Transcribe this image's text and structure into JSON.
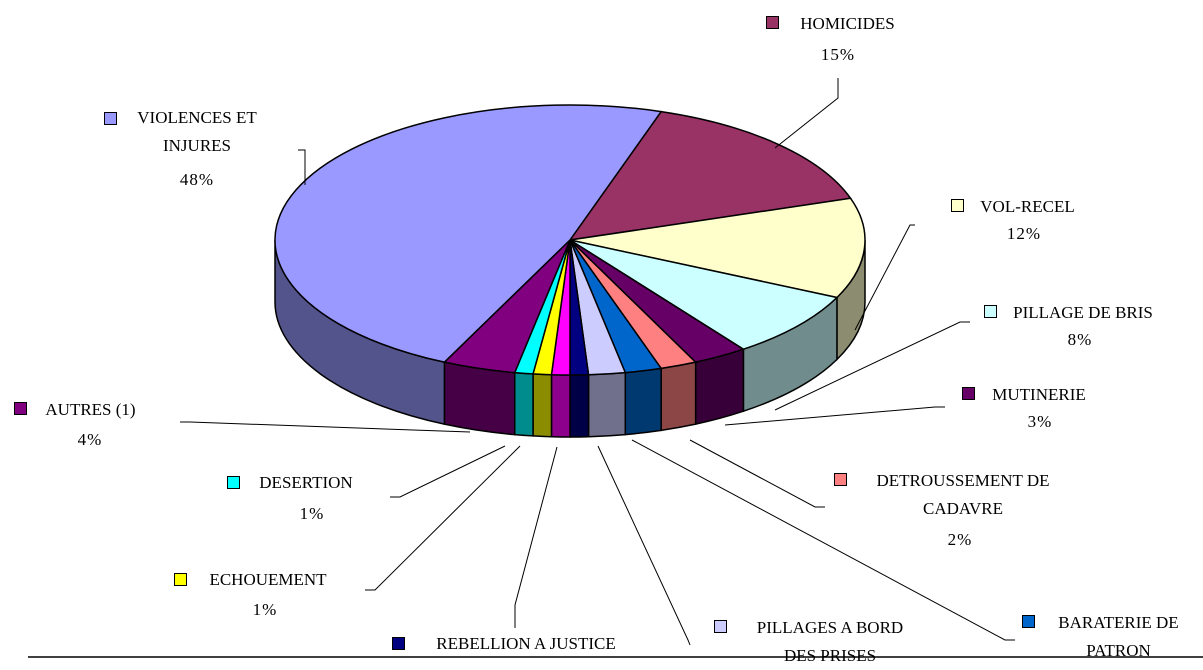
{
  "chart_data": {
    "type": "pie3d",
    "categories": [
      "VIOLENCES ET INJURES",
      "HOMICIDES",
      "VOL-RECEL",
      "PILLAGE DE BRIS",
      "MUTINERIE",
      "DETROUSSEMENT DE CADAVRE",
      "BARATERIE DE PATRON",
      "PILLAGES A BORD DES PRISES",
      "REBELLION A JUSTICE",
      null,
      "ECHOUEMENT",
      "DESERTION",
      "AUTRES (1)"
    ],
    "values": [
      48,
      15,
      12,
      8,
      3,
      2,
      2,
      2,
      1,
      1,
      1,
      1,
      4
    ],
    "value_labels": [
      "48%",
      "15%",
      "12%",
      "8%",
      "3%",
      "2%",
      null,
      null,
      null,
      null,
      "1%",
      "1%",
      "4%"
    ],
    "colors": [
      "#9999ff",
      "#993366",
      "#ffffcc",
      "#ccffff",
      "#660066",
      "#ff8080",
      "#0066cc",
      "#ccccff",
      "#000080",
      "#ff00ff",
      "#ffff00",
      "#00ffff",
      "#800080"
    ]
  }
}
